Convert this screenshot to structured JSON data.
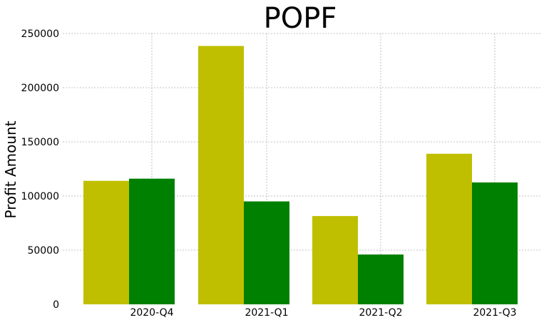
{
  "chart_data": {
    "type": "bar",
    "title": "POPF",
    "xlabel": "",
    "ylabel": "Profit Amount",
    "categories": [
      "2020-Q4",
      "2021-Q1",
      "2021-Q2",
      "2021-Q3"
    ],
    "series": [
      {
        "color": "#bfbf00",
        "values": [
          114000,
          238500,
          81500,
          139000
        ]
      },
      {
        "color": "#008000",
        "values": [
          116000,
          95000,
          46000,
          112500
        ]
      }
    ],
    "ylim": [
      0,
      250000
    ],
    "yticks": [
      "0",
      "50000",
      "100000",
      "150000",
      "200000",
      "250000"
    ],
    "grid": true,
    "legend": "none"
  }
}
